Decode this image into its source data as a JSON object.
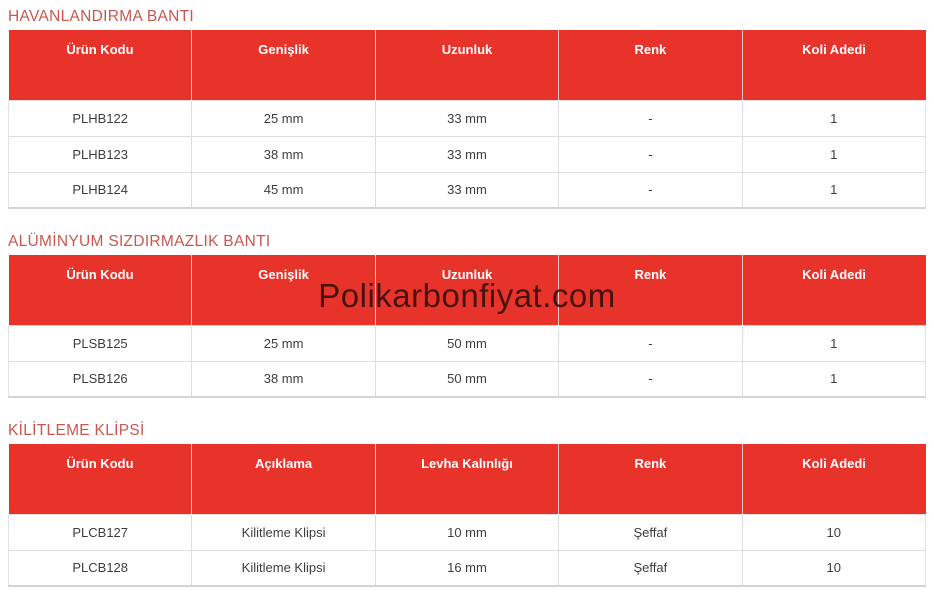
{
  "watermark": "Polikarbonfiyat.com",
  "colors": {
    "header_bg": "#e8332a",
    "section_title": "#ca574f",
    "cell_text": "#3d3d3d",
    "row_border": "#dddddd"
  },
  "sections": [
    {
      "title": "HAVANLANDIRMA BANTI",
      "headers": [
        "Ürün Kodu",
        "Genişlik",
        "Uzunluk",
        "Renk",
        "Koli Adedi"
      ],
      "rows": [
        [
          "PLHB122",
          "25 mm",
          "33 mm",
          "-",
          "1"
        ],
        [
          "PLHB123",
          "38 mm",
          "33 mm",
          "-",
          "1"
        ],
        [
          "PLHB124",
          "45 mm",
          "33 mm",
          "-",
          "1"
        ]
      ]
    },
    {
      "title": "ALÜMİNYUM SIZDIRMAZLIK BANTI",
      "headers": [
        "Ürün Kodu",
        "Genişlik",
        "Uzunluk",
        "Renk",
        "Koli Adedi"
      ],
      "rows": [
        [
          "PLSB125",
          "25 mm",
          "50 mm",
          "-",
          "1"
        ],
        [
          "PLSB126",
          "38 mm",
          "50 mm",
          "-",
          "1"
        ]
      ]
    },
    {
      "title": "KİLİTLEME KLİPSİ",
      "headers": [
        "Ürün Kodu",
        "Açıklama",
        "Levha Kalınlığı",
        "Renk",
        "Koli Adedi"
      ],
      "rows": [
        [
          "PLCB127",
          "Kilitleme Klipsi",
          "10 mm",
          "Şeffaf",
          "10"
        ],
        [
          "PLCB128",
          "Kilitleme Klipsi",
          "16 mm",
          "Şeffaf",
          "10"
        ]
      ]
    }
  ]
}
